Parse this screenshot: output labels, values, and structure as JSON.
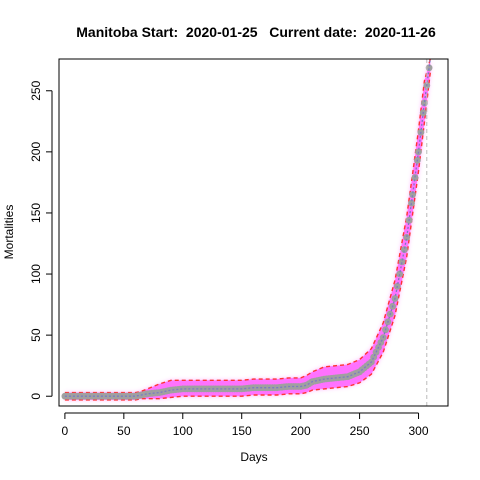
{
  "chart_data": {
    "type": "line",
    "title": "Manitoba Start:  2020-01-25   Current date:  2020-11-26",
    "xlabel": "Days",
    "ylabel": "Mortalities",
    "xlim": [
      -5,
      325
    ],
    "ylim": [
      -8,
      276
    ],
    "xticks": [
      0,
      50,
      100,
      150,
      200,
      250,
      300
    ],
    "yticks": [
      0,
      50,
      100,
      150,
      200,
      250
    ],
    "current_day_marker": 307,
    "grid": false,
    "legend": "none",
    "colors": {
      "band": "#ff66ff",
      "band_edge": "#ff3333",
      "central_line": "#7b7bc2",
      "observed_points": "#a0a0a0",
      "marker_line": "#bbbbbb"
    },
    "series": [
      {
        "role": "observed",
        "x": [
          0,
          10,
          20,
          30,
          40,
          50,
          60,
          65,
          70,
          80,
          90,
          100,
          110,
          120,
          130,
          140,
          150,
          160,
          170,
          180,
          190,
          200,
          205,
          210,
          220,
          230,
          240,
          250,
          260,
          270,
          280,
          290,
          295,
          300,
          305,
          310
        ],
        "y": [
          0,
          0,
          0,
          0,
          0,
          0,
          0,
          1,
          2,
          3,
          5,
          6,
          6,
          6,
          6,
          6,
          6,
          7,
          7,
          7,
          8,
          8,
          9,
          12,
          14,
          15,
          16,
          20,
          28,
          48,
          80,
          130,
          165,
          200,
          240,
          276
        ]
      },
      {
        "role": "upper",
        "x": [
          0,
          10,
          20,
          30,
          40,
          50,
          60,
          65,
          70,
          80,
          90,
          100,
          110,
          120,
          130,
          140,
          150,
          160,
          170,
          180,
          190,
          200,
          205,
          210,
          220,
          230,
          240,
          250,
          260,
          270,
          280,
          290,
          295,
          300,
          305,
          310
        ],
        "y": [
          3,
          3,
          3,
          3,
          3,
          3,
          3,
          4,
          6,
          10,
          13,
          13,
          13,
          13,
          13,
          13,
          13,
          14,
          14,
          14,
          15,
          15,
          17,
          20,
          24,
          25,
          26,
          30,
          39,
          60,
          95,
          147,
          182,
          218,
          258,
          276
        ]
      },
      {
        "role": "lower",
        "x": [
          0,
          10,
          20,
          30,
          40,
          50,
          60,
          65,
          70,
          80,
          90,
          100,
          110,
          120,
          130,
          140,
          150,
          160,
          170,
          180,
          190,
          200,
          205,
          210,
          220,
          230,
          240,
          250,
          260,
          270,
          280,
          290,
          295,
          300,
          305,
          310
        ],
        "y": [
          -3,
          -3,
          -3,
          -3,
          -3,
          -3,
          -3,
          -2,
          -2,
          -2,
          -1,
          0,
          0,
          0,
          0,
          0,
          0,
          1,
          1,
          1,
          2,
          2,
          3,
          5,
          6,
          7,
          8,
          11,
          18,
          36,
          66,
          114,
          149,
          184,
          224,
          265
        ]
      }
    ]
  }
}
